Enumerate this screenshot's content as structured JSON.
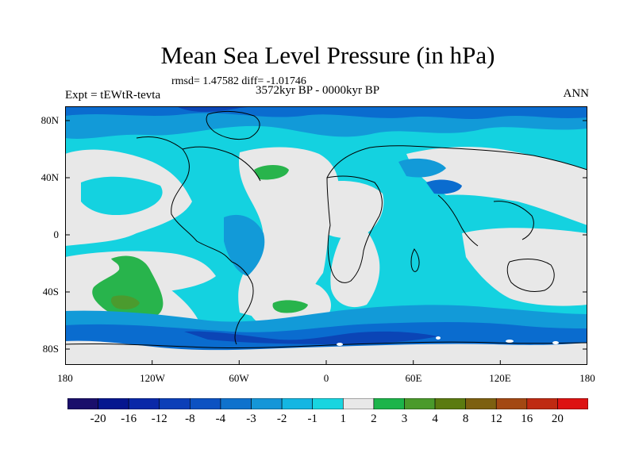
{
  "header": {
    "title": "Mean Sea Level Pressure (in hPa)",
    "stats": "rmsd= 1.47582 diff= -1.01746",
    "period": "3572kyr BP - 0000kyr BP",
    "experiment": "Expt = tEWtR-tevta",
    "season": "ANN"
  },
  "axes": {
    "lat_labels": [
      "80N",
      "40N",
      "0",
      "40S",
      "80S"
    ],
    "lat_values": [
      80,
      40,
      0,
      -40,
      -80
    ],
    "lon_labels": [
      "180",
      "120W",
      "60W",
      "0",
      "60E",
      "120E",
      "180"
    ],
    "lon_values": [
      -180,
      -120,
      -60,
      0,
      60,
      120,
      180
    ]
  },
  "colorbar": {
    "levels": [
      "-20",
      "-16",
      "-12",
      "-8",
      "-4",
      "-3",
      "-2",
      "-1",
      "1",
      "2",
      "3",
      "4",
      "8",
      "12",
      "16",
      "20"
    ],
    "colors": [
      "#1a0f6b",
      "#05168f",
      "#0a28a8",
      "#0b3fb8",
      "#0c52c2",
      "#0f72cd",
      "#1596d8",
      "#14b6e2",
      "#18d5e0",
      "#e8e8e8",
      "#1cb44a",
      "#4a9a2b",
      "#5b7b10",
      "#7d6010",
      "#a34813",
      "#bf2a12",
      "#dd1212"
    ]
  },
  "palette": {
    "neutral": "#e8e8e8",
    "cyan": "#14d2e0",
    "light_blue": "#129ad8",
    "mid_blue": "#0a6ccf",
    "dark_blue": "#0b45b6",
    "green": "#28b44c",
    "dark_green": "#4b9b2e",
    "coast": "#000000"
  }
}
